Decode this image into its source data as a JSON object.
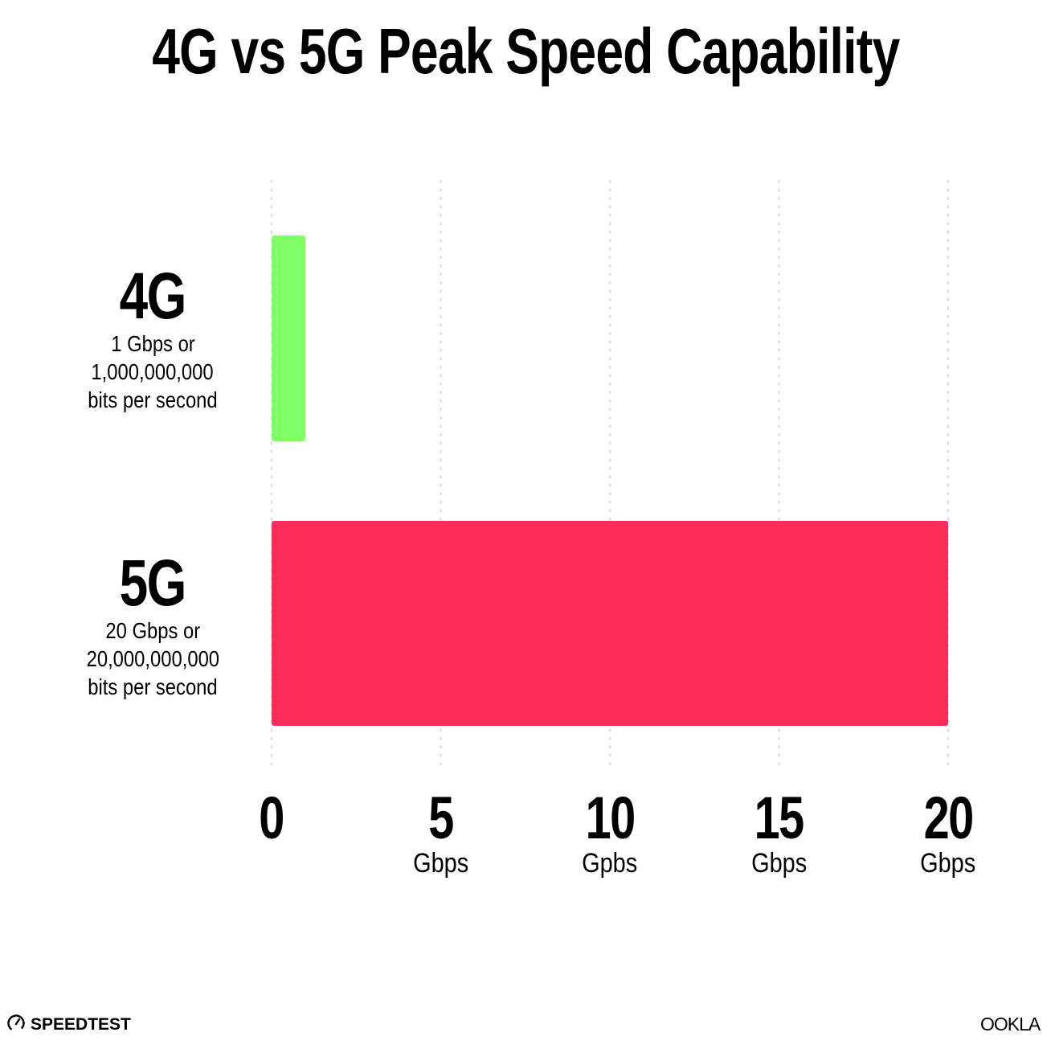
{
  "chart_data": {
    "type": "bar",
    "orientation": "horizontal",
    "title": "4G vs 5G Peak Speed Capability",
    "categories": [
      {
        "name": "4G",
        "lines": [
          "1 Gbps or",
          "1,000,000,000",
          "bits per second"
        ]
      },
      {
        "name": "5G",
        "lines": [
          "20 Gbps or",
          "20,000,000,000",
          "bits per second"
        ]
      }
    ],
    "values": [
      1,
      20
    ],
    "unit": "Gbps",
    "colors": [
      "#80ff66",
      "#ff2d5a"
    ],
    "xlim": [
      0,
      20
    ],
    "grid": true,
    "ticks": [
      {
        "value": 0,
        "label": "0",
        "unit": ""
      },
      {
        "value": 5,
        "label": "5",
        "unit": "Gbps"
      },
      {
        "value": 10,
        "label": "10",
        "unit": "Gpbs"
      },
      {
        "value": 15,
        "label": "15",
        "unit": "Gbps"
      },
      {
        "value": 20,
        "label": "20",
        "unit": "Gbps"
      }
    ]
  },
  "branding": {
    "left_logo": "SPEEDTEST",
    "right_logo": "OOKLA"
  }
}
